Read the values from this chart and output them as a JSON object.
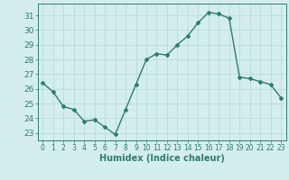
{
  "x": [
    0,
    1,
    2,
    3,
    4,
    5,
    6,
    7,
    8,
    9,
    10,
    11,
    12,
    13,
    14,
    15,
    16,
    17,
    18,
    19,
    20,
    21,
    22,
    23
  ],
  "y": [
    26.4,
    25.8,
    24.8,
    24.6,
    23.8,
    23.9,
    23.4,
    22.9,
    24.6,
    26.3,
    28.0,
    28.4,
    28.3,
    29.0,
    29.6,
    30.5,
    31.2,
    31.1,
    30.8,
    26.8,
    26.7,
    26.5,
    26.3,
    25.4
  ],
  "line_color": "#2d7d6e",
  "marker": "D",
  "markersize": 2,
  "linewidth": 1.0,
  "xlabel": "Humidex (Indice chaleur)",
  "xlabel_fontsize": 7,
  "background_color": "#d4eeec",
  "grid_color": "#b8ddd9",
  "tick_color": "#2d7d6e",
  "ylim": [
    22.5,
    31.8
  ],
  "yticks": [
    23,
    24,
    25,
    26,
    27,
    28,
    29,
    30,
    31
  ],
  "xlim": [
    -0.5,
    23.5
  ],
  "xticks": [
    0,
    1,
    2,
    3,
    4,
    5,
    6,
    7,
    8,
    9,
    10,
    11,
    12,
    13,
    14,
    15,
    16,
    17,
    18,
    19,
    20,
    21,
    22,
    23
  ],
  "xtick_fontsize": 5.5,
  "ytick_fontsize": 6.5
}
